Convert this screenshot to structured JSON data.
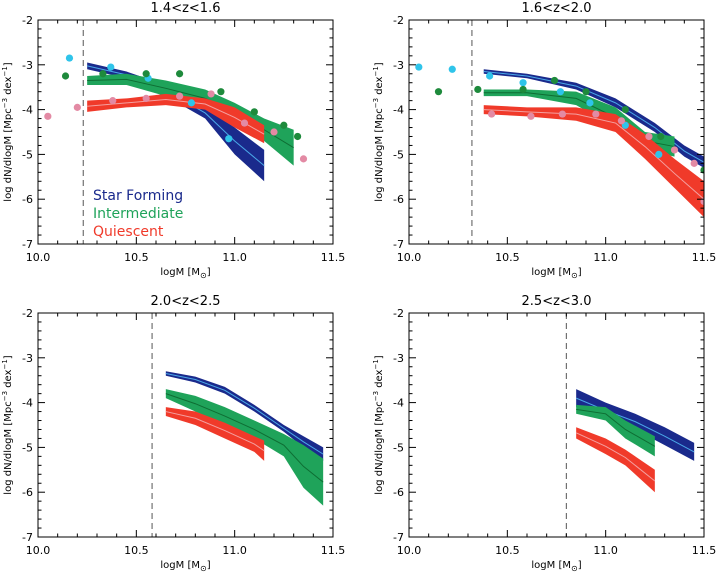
{
  "figure": {
    "xlabel": "logM [M",
    "xlabel_sub": "⊙",
    "xlabel_end": "]",
    "ylabel": "log dN/dlogM [Mpc",
    "ylabel_sup": "−3",
    "ylabel_mid": " dex",
    "ylabel_sup2": "−1",
    "ylabel_end": "]"
  },
  "legend": [
    {
      "label": "Star Forming",
      "color": "#1a2a8c"
    },
    {
      "label": "Intermediate",
      "color": "#1fa35a"
    },
    {
      "label": "Quiescent",
      "color": "#f03a2a"
    }
  ],
  "colors": {
    "sf": "#1a2a8c",
    "int": "#1fa35a",
    "q": "#f03a2a",
    "sf_pts": "#2fc4ea",
    "int_pts": "#1e8a3c",
    "q_pts": "#e38aa4",
    "sf_line": "#4aa8e8",
    "q_line": "#f4a0a0"
  },
  "chart_data": [
    {
      "type": "area",
      "title": "1.4<z<1.6",
      "xlim": [
        10.0,
        11.5
      ],
      "ylim": [
        -7,
        -2
      ],
      "xticks": [
        "10.0",
        "10.5",
        "11.0",
        "11.5"
      ],
      "yticks": [
        "-7",
        "-6",
        "-5",
        "-4",
        "-3",
        "-2"
      ],
      "vline": 10.23,
      "show_legend": true,
      "bands": [
        {
          "key": "sf",
          "x": [
            10.25,
            10.45,
            10.65,
            10.85,
            11.0,
            11.15
          ],
          "lo": [
            -3.1,
            -3.3,
            -3.7,
            -4.2,
            -5.0,
            -5.6
          ],
          "hi": [
            -2.95,
            -3.15,
            -3.45,
            -3.95,
            -4.4,
            -4.9
          ]
        },
        {
          "key": "int",
          "x": [
            10.25,
            10.45,
            10.65,
            10.85,
            11.0,
            11.15,
            11.3
          ],
          "lo": [
            -3.45,
            -3.45,
            -3.7,
            -3.95,
            -4.3,
            -4.7,
            -5.25
          ],
          "hi": [
            -3.25,
            -3.2,
            -3.35,
            -3.55,
            -3.85,
            -4.2,
            -4.45
          ]
        },
        {
          "key": "q",
          "x": [
            10.25,
            10.45,
            10.65,
            10.85,
            11.0,
            11.15
          ],
          "lo": [
            -4.05,
            -3.95,
            -3.9,
            -4.0,
            -4.4,
            -4.75
          ],
          "hi": [
            -3.8,
            -3.75,
            -3.65,
            -3.75,
            -3.95,
            -4.35
          ]
        }
      ],
      "points": [
        {
          "key": "sf_pts",
          "x": [
            10.16,
            10.37,
            10.56,
            10.78,
            10.97
          ],
          "y": [
            -2.85,
            -3.05,
            -3.3,
            -3.85,
            -4.65
          ]
        },
        {
          "key": "int_pts",
          "x": [
            10.14,
            10.33,
            10.55,
            10.72,
            10.93,
            11.1,
            11.25,
            11.32
          ],
          "y": [
            -3.25,
            -3.2,
            -3.2,
            -3.2,
            -3.6,
            -4.05,
            -4.35,
            -4.6
          ]
        },
        {
          "key": "q_pts",
          "x": [
            10.05,
            10.2,
            10.38,
            10.55,
            10.72,
            10.88,
            11.05,
            11.2,
            11.35
          ],
          "y": [
            -4.15,
            -3.95,
            -3.8,
            -3.75,
            -3.7,
            -3.65,
            -4.3,
            -4.5,
            -5.1
          ]
        }
      ]
    },
    {
      "type": "area",
      "title": "1.6<z<2.0",
      "xlim": [
        10.0,
        11.5
      ],
      "ylim": [
        -7,
        -2
      ],
      "xticks": [
        "10.0",
        "10.5",
        "11.0",
        "11.5"
      ],
      "yticks": [
        "-7",
        "-6",
        "-5",
        "-4",
        "-3",
        "-2"
      ],
      "vline": 10.32,
      "show_legend": false,
      "bands": [
        {
          "key": "sf",
          "x": [
            10.38,
            10.6,
            10.85,
            11.05,
            11.25,
            11.4,
            11.5
          ],
          "lo": [
            -3.2,
            -3.3,
            -3.55,
            -3.95,
            -4.5,
            -5.05,
            -5.3
          ],
          "hi": [
            -3.1,
            -3.2,
            -3.4,
            -3.75,
            -4.3,
            -4.8,
            -5.05
          ]
        },
        {
          "key": "int",
          "x": [
            10.38,
            10.6,
            10.85,
            11.05,
            11.2,
            11.35
          ],
          "lo": [
            -3.7,
            -3.7,
            -3.9,
            -4.4,
            -4.9,
            -5.05
          ],
          "hi": [
            -3.55,
            -3.55,
            -3.6,
            -3.95,
            -4.5,
            -4.6
          ]
        },
        {
          "key": "q",
          "x": [
            10.38,
            10.6,
            10.85,
            11.05,
            11.2,
            11.35,
            11.5
          ],
          "lo": [
            -4.1,
            -4.15,
            -4.25,
            -4.5,
            -5.1,
            -5.75,
            -6.4
          ],
          "hi": [
            -3.9,
            -3.95,
            -3.95,
            -4.1,
            -4.55,
            -5.1,
            -5.6
          ]
        }
      ],
      "points": [
        {
          "key": "sf_pts",
          "x": [
            10.05,
            10.22,
            10.41,
            10.58,
            10.77,
            10.92,
            11.1,
            11.27
          ],
          "y": [
            -3.05,
            -3.1,
            -3.25,
            -3.4,
            -3.6,
            -3.85,
            -4.35,
            -5.0
          ]
        },
        {
          "key": "int_pts",
          "x": [
            10.15,
            10.35,
            10.58,
            10.74,
            10.9,
            11.1,
            11.28,
            11.5
          ],
          "y": [
            -3.6,
            -3.55,
            -3.55,
            -3.35,
            -3.6,
            -4.0,
            -4.6,
            -5.35
          ]
        },
        {
          "key": "q_pts",
          "x": [
            10.42,
            10.62,
            10.78,
            10.95,
            11.08,
            11.22,
            11.35,
            11.45,
            11.5
          ],
          "y": [
            -4.1,
            -4.15,
            -4.1,
            -4.1,
            -4.25,
            -4.6,
            -4.9,
            -5.2,
            -6.05
          ]
        }
      ]
    },
    {
      "type": "area",
      "title": "2.0<z<2.5",
      "xlim": [
        10.0,
        11.5
      ],
      "ylim": [
        -7,
        -2
      ],
      "xticks": [
        "10.0",
        "10.5",
        "11.0",
        "11.5"
      ],
      "yticks": [
        "-7",
        "-6",
        "-5",
        "-4",
        "-3",
        "-2"
      ],
      "vline": 10.58,
      "show_legend": false,
      "bands": [
        {
          "key": "sf",
          "x": [
            10.65,
            10.8,
            10.95,
            11.1,
            11.25,
            11.35,
            11.45
          ],
          "lo": [
            -3.4,
            -3.55,
            -3.8,
            -4.2,
            -4.65,
            -5.0,
            -5.3
          ],
          "hi": [
            -3.3,
            -3.42,
            -3.65,
            -4.05,
            -4.5,
            -4.75,
            -5.0
          ]
        },
        {
          "key": "int",
          "x": [
            10.65,
            10.8,
            10.95,
            11.1,
            11.25,
            11.35,
            11.45
          ],
          "lo": [
            -3.9,
            -4.2,
            -4.5,
            -4.8,
            -5.2,
            -5.9,
            -6.3
          ],
          "hi": [
            -3.7,
            -3.85,
            -4.1,
            -4.4,
            -4.7,
            -4.95,
            -5.25
          ]
        },
        {
          "key": "q",
          "x": [
            10.65,
            10.8,
            10.95,
            11.1,
            11.15
          ],
          "lo": [
            -4.3,
            -4.5,
            -4.8,
            -5.1,
            -5.3
          ],
          "hi": [
            -4.1,
            -4.2,
            -4.45,
            -4.75,
            -4.85
          ]
        }
      ],
      "points": []
    },
    {
      "type": "area",
      "title": "2.5<z<3.0",
      "xlim": [
        10.0,
        11.5
      ],
      "ylim": [
        -7,
        -2
      ],
      "xticks": [
        "10.0",
        "10.5",
        "11.0",
        "11.5"
      ],
      "yticks": [
        "-7",
        "-6",
        "-5",
        "-4",
        "-3",
        "-2"
      ],
      "vline": 10.8,
      "show_legend": false,
      "bands": [
        {
          "key": "sf",
          "x": [
            10.85,
            11.0,
            11.15,
            11.3,
            11.45
          ],
          "lo": [
            -4.1,
            -4.35,
            -4.6,
            -4.95,
            -5.3
          ],
          "hi": [
            -3.7,
            -4.0,
            -4.25,
            -4.55,
            -4.9
          ]
        },
        {
          "key": "int",
          "x": [
            10.85,
            11.0,
            11.1,
            11.25
          ],
          "lo": [
            -4.25,
            -4.4,
            -4.8,
            -5.2
          ],
          "hi": [
            -4.05,
            -4.1,
            -4.4,
            -4.75
          ]
        },
        {
          "key": "q",
          "x": [
            10.85,
            11.0,
            11.1,
            11.25
          ],
          "lo": [
            -4.8,
            -5.15,
            -5.4,
            -6.0
          ],
          "hi": [
            -4.55,
            -4.8,
            -5.05,
            -5.5
          ]
        }
      ],
      "points": []
    }
  ]
}
